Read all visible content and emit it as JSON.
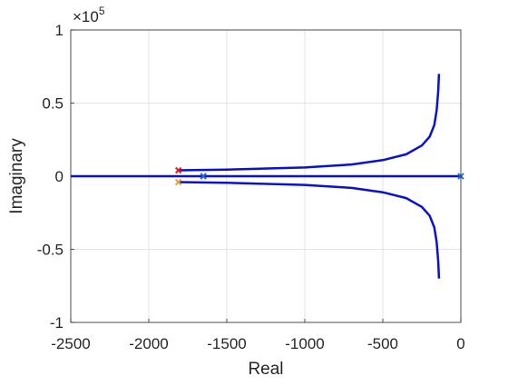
{
  "chart_data": {
    "type": "line",
    "xlabel": "Real",
    "ylabel": "Imaginary",
    "y_exponent_base": "×10",
    "y_exponent": 5,
    "xlim": [
      -2500,
      0
    ],
    "xticks": [
      -2500,
      -2000,
      -1500,
      -1000,
      -500,
      0
    ],
    "ylim": [
      -1,
      1
    ],
    "yticks": [
      -1,
      -0.5,
      0,
      0.5,
      1
    ],
    "grid": true,
    "series": [
      {
        "color": "#0a10d8",
        "x": [
          -1810,
          -1500,
          -1000,
          -700,
          -500,
          -350,
          -250,
          -200,
          -170,
          -155,
          -145,
          -140
        ],
        "values": [
          0.04,
          0.045,
          0.06,
          0.08,
          0.11,
          0.15,
          0.21,
          0.27,
          0.35,
          0.45,
          0.58,
          0.7
        ]
      },
      {
        "color": "#0a10d8",
        "x": [
          -1810,
          -1500,
          -1000,
          -700,
          -500,
          -350,
          -250,
          -200,
          -170,
          -155,
          -145,
          -140
        ],
        "values": [
          -0.04,
          -0.045,
          -0.06,
          -0.08,
          -0.11,
          -0.15,
          -0.21,
          -0.27,
          -0.35,
          -0.45,
          -0.58,
          -0.7
        ]
      },
      {
        "color": "#0a10d8",
        "x": [
          -2500,
          0
        ],
        "values": [
          0,
          0
        ]
      }
    ],
    "markers": [
      {
        "x": -1810,
        "y": 0.04,
        "color": "#d62020"
      },
      {
        "x": -1810,
        "y": -0.04,
        "color": "#e8a020"
      },
      {
        "x": -1650,
        "y": 0,
        "color": "#2060e0"
      },
      {
        "x": 0,
        "y": 0,
        "color": "#1f77d4"
      }
    ]
  }
}
